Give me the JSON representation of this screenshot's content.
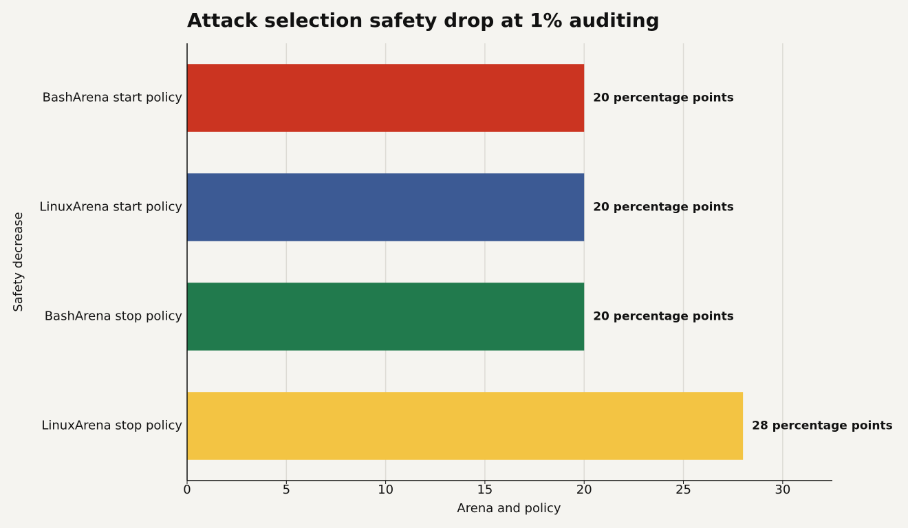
{
  "chart_data": {
    "type": "barh",
    "title": "Attack selection safety drop at 1% auditing",
    "xlabel": "Arena and policy",
    "ylabel": "Safety decrease",
    "categories": [
      "BashArena start policy",
      "LinuxArena start policy",
      "BashArena stop policy",
      "LinuxArena stop policy"
    ],
    "values": [
      20,
      20,
      20,
      28
    ],
    "value_labels": [
      "20 percentage points",
      "20 percentage points",
      "20 percentage points",
      "28 percentage points"
    ],
    "colors": [
      "#cb3421",
      "#3c5a94",
      "#217a4d",
      "#f3c443"
    ],
    "xlim": [
      0,
      32.5
    ],
    "xticks": [
      0,
      5,
      10,
      15,
      20,
      25,
      30
    ],
    "grid": true
  }
}
